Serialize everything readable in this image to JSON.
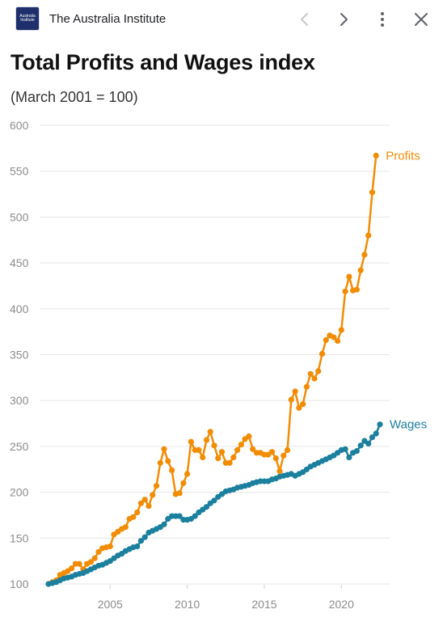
{
  "header": {
    "app_name": "The Australia Institute",
    "logo_text": "Australia Institute"
  },
  "icons": {
    "back": "chevron-left-icon",
    "forward": "chevron-right-icon",
    "menu": "more-vertical-icon",
    "close": "close-icon"
  },
  "colors": {
    "profits": "#f28c05",
    "wages": "#1b7f9e",
    "grid": "#e6e6e6",
    "tick_text": "#8c8c8c"
  },
  "chart_data": {
    "type": "line",
    "title": "Total Profits and Wages index",
    "subtitle": "(March 2001 = 100)",
    "xlabel": "",
    "ylabel": "",
    "xlim": [
      2001,
      2022.5
    ],
    "ylim": [
      100,
      600
    ],
    "yticks": [
      "100",
      "150",
      "200",
      "250",
      "300",
      "350",
      "400",
      "450",
      "500",
      "550",
      "600"
    ],
    "xticks": [
      "2005",
      "2010",
      "2015",
      "2020"
    ],
    "grid": true,
    "x_start": 2001.0,
    "x_step": 0.25,
    "series": [
      {
        "name": "Profits",
        "values": [
          100,
          102,
          104,
          110,
          112,
          114,
          117,
          122,
          122,
          116,
          122,
          124,
          128,
          135,
          139,
          140,
          141,
          154,
          157,
          160,
          162,
          171,
          173,
          178,
          188,
          192,
          185,
          197,
          207,
          232,
          247,
          234,
          224,
          198,
          199,
          210,
          220,
          255,
          246,
          246,
          238,
          257,
          266,
          251,
          237,
          244,
          232,
          232,
          238,
          246,
          252,
          258,
          261,
          247,
          243,
          243,
          241,
          241,
          244,
          237,
          223,
          240,
          246,
          301,
          310,
          292,
          296,
          315,
          329,
          324,
          332,
          351,
          366,
          371,
          369,
          365,
          377,
          419,
          435,
          420,
          421,
          442,
          459,
          480,
          527,
          567
        ]
      },
      {
        "name": "Wages",
        "values": [
          100,
          101,
          102,
          104,
          106,
          107,
          108,
          110,
          111,
          112,
          114,
          116,
          118,
          120,
          121,
          123,
          125,
          128,
          131,
          133,
          136,
          138,
          140,
          141,
          147,
          151,
          156,
          158,
          160,
          162,
          165,
          171,
          174,
          174,
          174,
          170,
          170,
          171,
          174,
          178,
          181,
          184,
          188,
          191,
          195,
          198,
          201,
          202,
          203,
          205,
          206,
          207,
          208,
          210,
          211,
          212,
          212,
          212,
          214,
          215,
          217,
          218,
          219,
          220,
          218,
          220,
          222,
          225,
          228,
          230,
          232,
          234,
          236,
          238,
          240,
          243,
          246,
          247,
          238,
          243,
          245,
          251,
          256,
          253,
          260,
          264,
          274
        ]
      }
    ]
  }
}
